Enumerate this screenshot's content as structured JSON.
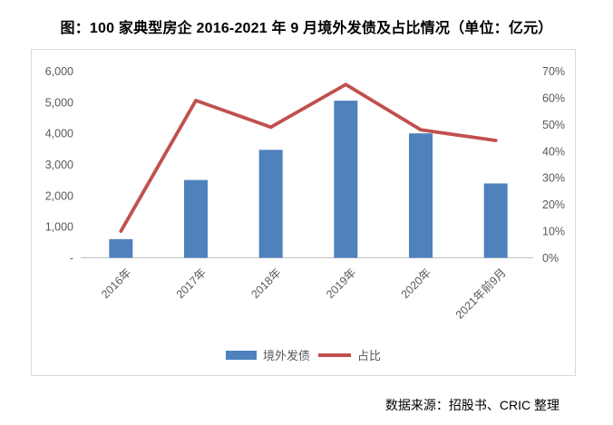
{
  "title": "图：100 家典型房企 2016-2021 年 9 月境外发债及占比情况（单位：亿元）",
  "source": "数据来源：招股书、CRIC 整理",
  "colors": {
    "bar": "#4F81BD",
    "line": "#C0504D",
    "axis_text": "#595959",
    "axis_line": "#BFBFBF",
    "box_border": "#D9D9D9"
  },
  "legend": [
    {
      "label": "境外发债",
      "type": "bar",
      "color": "#4F81BD"
    },
    {
      "label": "占比",
      "type": "line",
      "color": "#C0504D"
    }
  ],
  "chart_data": {
    "type": "bar+line combo",
    "categories": [
      "2016年",
      "2017年",
      "2018年",
      "2019年",
      "2020年",
      "2021年前9月"
    ],
    "series": [
      {
        "name": "境外发债",
        "type": "bar",
        "axis": "left",
        "color": "#4F81BD",
        "values": [
          600,
          2500,
          3470,
          5050,
          4000,
          2390
        ]
      },
      {
        "name": "占比",
        "type": "line",
        "axis": "right",
        "color": "#C0504D",
        "values": [
          10,
          59,
          49,
          65,
          48,
          44
        ],
        "unit": "%"
      }
    ],
    "left_axis": {
      "min": 0,
      "max": 6000,
      "step": 1000,
      "tick_labels": [
        "-",
        "1,000",
        "2,000",
        "3,000",
        "4,000",
        "5,000",
        "6,000"
      ]
    },
    "right_axis": {
      "min": 0,
      "max": 70,
      "step": 10,
      "tick_labels": [
        "0%",
        "10%",
        "20%",
        "30%",
        "40%",
        "50%",
        "60%",
        "70%"
      ]
    },
    "grid": false,
    "legend_position": "bottom"
  }
}
